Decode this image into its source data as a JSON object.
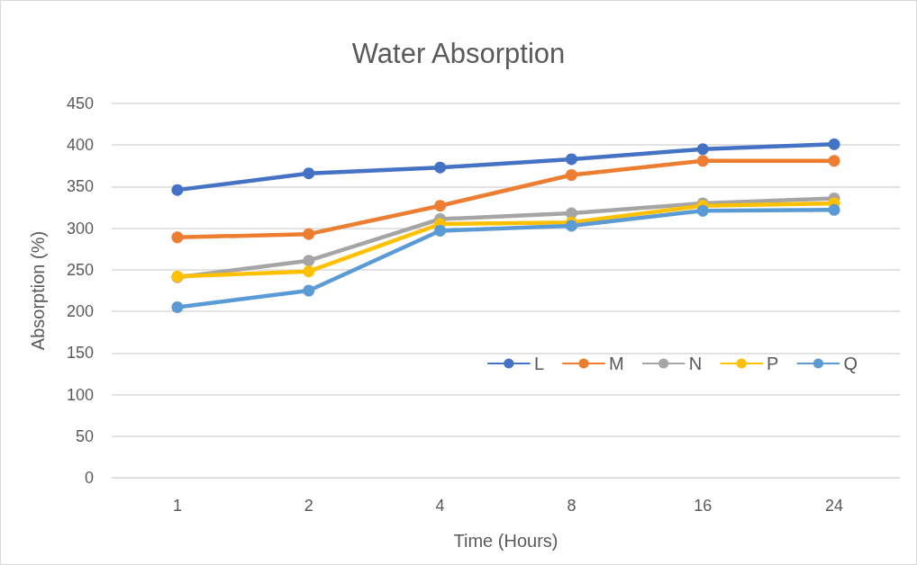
{
  "chart_data": {
    "type": "line",
    "title": "Water Absorption",
    "xlabel": "Time (Hours)",
    "ylabel": "Absorption (%)",
    "categories": [
      "1",
      "2",
      "4",
      "8",
      "16",
      "24"
    ],
    "series": [
      {
        "name": "L",
        "color": "#4472c4",
        "values": [
          346,
          366,
          373,
          383,
          395,
          401
        ]
      },
      {
        "name": "M",
        "color": "#ed7d31",
        "values": [
          289,
          293,
          327,
          364,
          381,
          381
        ]
      },
      {
        "name": "N",
        "color": "#a5a5a5",
        "values": [
          241,
          261,
          311,
          318,
          330,
          336
        ]
      },
      {
        "name": "P",
        "color": "#ffc000",
        "values": [
          242,
          248,
          305,
          307,
          327,
          330
        ]
      },
      {
        "name": "Q",
        "color": "#5b9bd5",
        "values": [
          205,
          225,
          297,
          303,
          321,
          322
        ]
      }
    ],
    "ylim": [
      0,
      450
    ],
    "yticks": [
      0,
      50,
      100,
      150,
      200,
      250,
      300,
      350,
      400,
      450
    ],
    "grid": "y",
    "legend": "right",
    "marker": "circle",
    "line_style": "solid"
  }
}
